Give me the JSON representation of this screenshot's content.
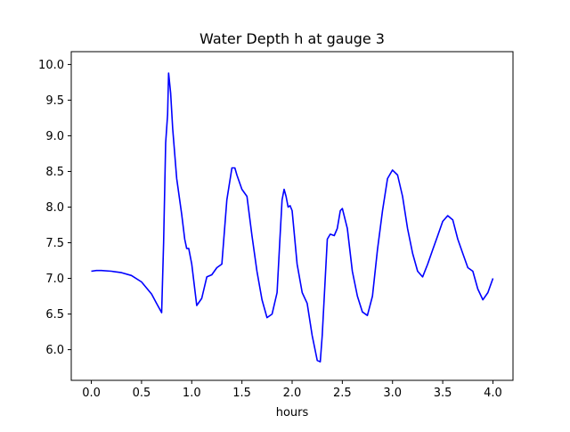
{
  "chart_data": {
    "type": "line",
    "title": "Water Depth h at gauge 3",
    "xlabel": "hours",
    "ylabel": "",
    "xlim": [
      -0.2,
      4.2
    ],
    "ylim": [
      5.57,
      10.18
    ],
    "xticks": [
      0.0,
      0.5,
      1.0,
      1.5,
      2.0,
      2.5,
      3.0,
      3.5,
      4.0
    ],
    "xtick_labels": [
      "0.0",
      "0.5",
      "1.0",
      "1.5",
      "2.0",
      "2.5",
      "3.0",
      "3.5",
      "4.0"
    ],
    "yticks": [
      6.0,
      6.5,
      7.0,
      7.5,
      8.0,
      8.5,
      9.0,
      9.5,
      10.0
    ],
    "ytick_labels": [
      "6.0",
      "6.5",
      "7.0",
      "7.5",
      "8.0",
      "8.5",
      "9.0",
      "9.5",
      "10.0"
    ],
    "grid": false,
    "legend": "none",
    "series": [
      {
        "color": "#0000ff",
        "x": [
          0.0,
          0.05,
          0.1,
          0.2,
          0.3,
          0.4,
          0.5,
          0.6,
          0.65,
          0.7,
          0.72,
          0.74,
          0.76,
          0.77,
          0.79,
          0.81,
          0.85,
          0.9,
          0.93,
          0.95,
          0.97,
          1.0,
          1.05,
          1.1,
          1.15,
          1.2,
          1.25,
          1.3,
          1.35,
          1.4,
          1.43,
          1.45,
          1.5,
          1.55,
          1.6,
          1.65,
          1.7,
          1.75,
          1.8,
          1.85,
          1.88,
          1.9,
          1.92,
          1.94,
          1.96,
          1.98,
          2.0,
          2.05,
          2.1,
          2.15,
          2.2,
          2.25,
          2.28,
          2.3,
          2.35,
          2.38,
          2.42,
          2.45,
          2.48,
          2.5,
          2.55,
          2.6,
          2.65,
          2.7,
          2.75,
          2.8,
          2.85,
          2.9,
          2.95,
          3.0,
          3.05,
          3.1,
          3.15,
          3.2,
          3.25,
          3.3,
          3.35,
          3.4,
          3.45,
          3.5,
          3.55,
          3.6,
          3.65,
          3.7,
          3.75,
          3.8,
          3.85,
          3.9,
          3.95,
          4.0
        ],
        "y": [
          7.1,
          7.11,
          7.11,
          7.1,
          7.08,
          7.04,
          6.95,
          6.78,
          6.65,
          6.52,
          7.5,
          8.9,
          9.3,
          9.88,
          9.6,
          9.1,
          8.4,
          7.9,
          7.55,
          7.42,
          7.42,
          7.2,
          6.62,
          6.72,
          7.02,
          7.05,
          7.15,
          7.2,
          8.1,
          8.55,
          8.55,
          8.45,
          8.25,
          8.15,
          7.6,
          7.1,
          6.7,
          6.45,
          6.5,
          6.8,
          7.6,
          8.1,
          8.25,
          8.15,
          8.0,
          8.02,
          7.95,
          7.2,
          6.8,
          6.65,
          6.2,
          5.85,
          5.83,
          6.2,
          7.55,
          7.62,
          7.6,
          7.7,
          7.95,
          7.98,
          7.7,
          7.1,
          6.75,
          6.53,
          6.48,
          6.75,
          7.4,
          7.95,
          8.4,
          8.52,
          8.45,
          8.15,
          7.7,
          7.35,
          7.1,
          7.02,
          7.2,
          7.4,
          7.6,
          7.8,
          7.88,
          7.82,
          7.55,
          7.35,
          7.15,
          7.1,
          6.85,
          6.7,
          6.8,
          7.0
        ]
      }
    ]
  }
}
